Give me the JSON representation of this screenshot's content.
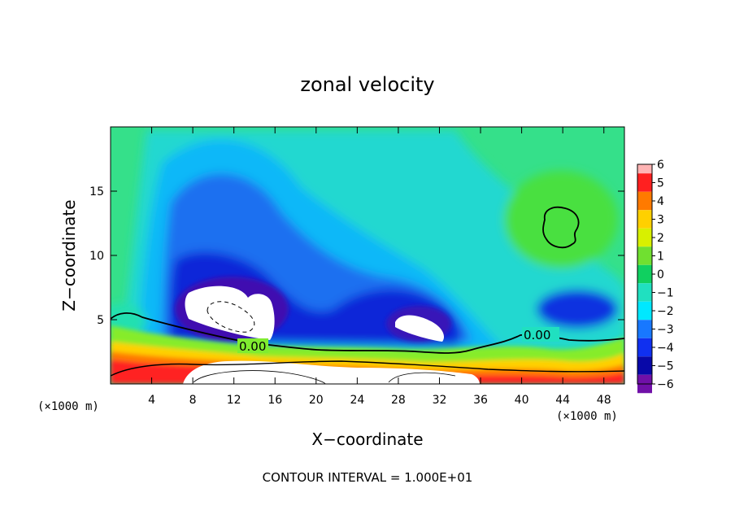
{
  "chart_data": {
    "type": "heatmap",
    "title": "zonal velocity",
    "xlabel": "X−coordinate",
    "ylabel": "Z−coordinate",
    "x_unit_left": "(×1000 m)",
    "x_unit_right": "(×1000 m)",
    "xlim": [
      0,
      50
    ],
    "ylim": [
      0,
      20
    ],
    "xticks": [
      4,
      8,
      12,
      16,
      20,
      24,
      28,
      32,
      36,
      40,
      44,
      48
    ],
    "yticks": [
      5,
      10,
      15
    ],
    "colorbar": {
      "levels": [
        6,
        5,
        4,
        3,
        2,
        1,
        0,
        -1,
        -2,
        -3,
        -4,
        -5,
        -6
      ],
      "tick_labels": [
        "6",
        "5",
        "4",
        "3",
        "2",
        "1",
        "0",
        "−1",
        "−2",
        "−3",
        "−4",
        "−5",
        "−6"
      ],
      "colors": [
        "#ffb4b4",
        "#ff2020",
        "#ff7a00",
        "#ffd000",
        "#d8f000",
        "#70e030",
        "#10d060",
        "#20e0c0",
        "#00e8ff",
        "#1878ff",
        "#1030f0",
        "#0808a8",
        "#7010a8"
      ]
    },
    "contour_labels": [
      "0.00",
      "0.00"
    ],
    "note": "CONTOUR INTERVAL = 1.000E+01"
  }
}
